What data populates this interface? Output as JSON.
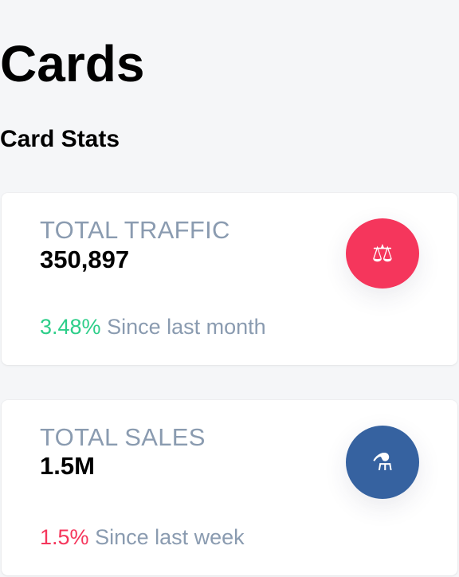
{
  "header": {
    "title": "Cards",
    "subtitle": "Card Stats"
  },
  "cards": [
    {
      "label": "TOTAL TRAFFIC",
      "value": "350,897",
      "change": "3.48%",
      "change_trend": "up",
      "period": "Since last month",
      "icon": "balance-scale-icon",
      "icon_glyph": "⚖",
      "icon_color": "#f5365c"
    },
    {
      "label": "TOTAL SALES",
      "value": "1.5M",
      "change": "1.5%",
      "change_trend": "down",
      "period": "Since last week",
      "icon": "flask-icon",
      "icon_glyph": "⚗",
      "icon_color": "#3662a0"
    }
  ],
  "colors": {
    "background": "#f5f6f8",
    "positive": "#2dce89",
    "negative": "#f5365c",
    "muted": "#8a9bb0"
  }
}
